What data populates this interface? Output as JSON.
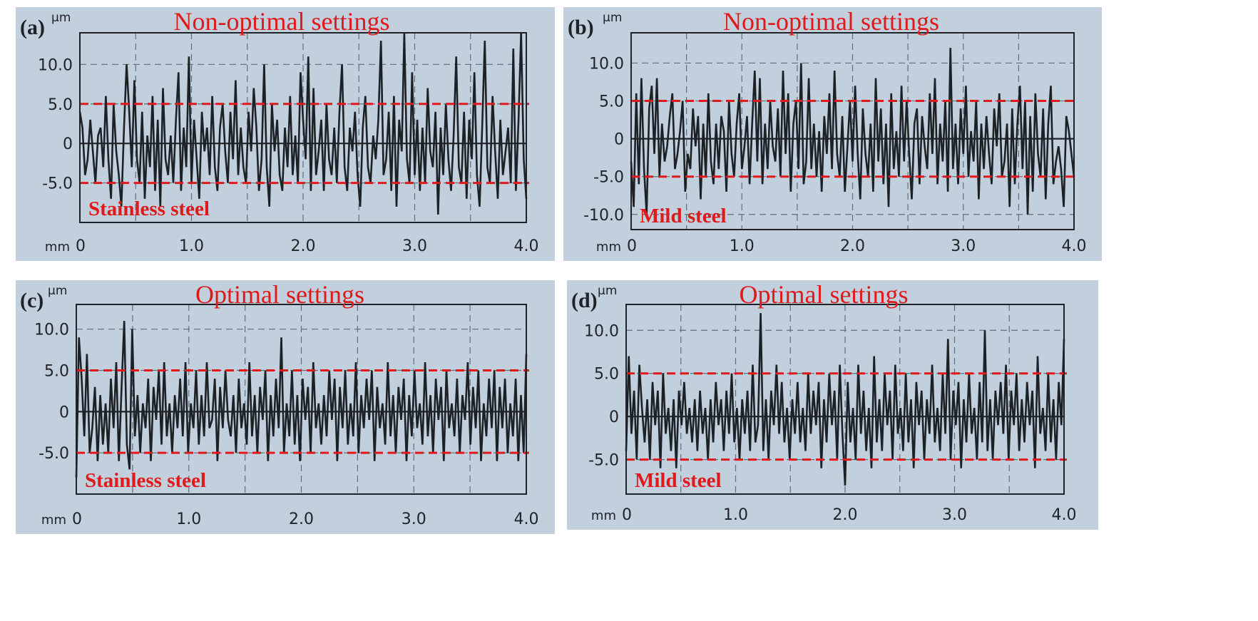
{
  "colors": {
    "background": "#c2cfdd",
    "frame": "#1f2328",
    "trace": "#1c2126",
    "grid": "#5f6f82",
    "threshold": "#e0191b",
    "annotation": "#e0191b"
  },
  "chart_data": [
    {
      "type": "line",
      "panel_label": "(a)",
      "title": "Non-optimal settings",
      "material": "Stainless steel",
      "xlabel": "mm",
      "ylabel": "µm",
      "xlim": [
        0,
        4.0
      ],
      "ylim": [
        -10,
        14
      ],
      "x_ticks": [
        "0",
        "1.0",
        "2.0",
        "3.0",
        "4.0"
      ],
      "y_ticks": [
        {
          "v": 10,
          "t": "10.0"
        },
        {
          "v": 5,
          "t": "5.0"
        },
        {
          "v": 0,
          "t": "0"
        },
        {
          "v": -5,
          "t": "-5.0"
        }
      ],
      "thresholds": [
        5.0,
        -5.0
      ],
      "grid": true,
      "series": [
        {
          "x_step": 0.02,
          "values": [
            4,
            2,
            -4,
            -2,
            3,
            -1,
            -5,
            1,
            2,
            -3,
            6,
            -2,
            -7,
            5,
            -1,
            -4,
            -8,
            2,
            10,
            4,
            -3,
            8,
            -2,
            -5,
            4,
            -7,
            1,
            -3,
            6,
            -6,
            3,
            -8,
            7,
            -2,
            -4,
            1,
            -5,
            3,
            9,
            -6,
            2,
            -3,
            11,
            -5,
            3,
            -2,
            -7,
            4,
            -1,
            2,
            -4,
            6,
            -3,
            -6,
            2,
            5,
            -1,
            -5,
            4,
            -2,
            8,
            -4,
            2,
            -3,
            -5,
            4,
            -1,
            7,
            2,
            -6,
            -2,
            10,
            -3,
            -8,
            5,
            -1,
            3,
            -4,
            -6,
            2,
            -3,
            6,
            -4,
            1,
            -5,
            9,
            3,
            -2,
            11,
            -6,
            7,
            -4,
            -1,
            3,
            -6,
            5,
            -2,
            -4,
            2,
            -5,
            4,
            10,
            -3,
            -6,
            2,
            -1,
            4,
            -4,
            -8,
            2,
            6,
            -3,
            -5,
            1,
            -2,
            3,
            13,
            -4,
            -2,
            4,
            -6,
            6,
            -8,
            3,
            -1,
            14,
            -2,
            -5,
            9,
            -4,
            3,
            -6,
            2,
            -5,
            7,
            -1,
            -3,
            4,
            -9,
            2,
            -4,
            5,
            -2,
            -6,
            1,
            11,
            -3,
            -5,
            4,
            -7,
            3,
            -2,
            9,
            -4,
            -8,
            2,
            13,
            -3,
            -5,
            6,
            -1,
            -7,
            3,
            -4,
            -1,
            2,
            -5,
            12,
            -6,
            3,
            14,
            -2,
            -7
          ]
        }
      ]
    },
    {
      "type": "line",
      "panel_label": "(b)",
      "title": "Non-optimal settings",
      "material": "Mild steel",
      "xlabel": "mm",
      "ylabel": "µm",
      "xlim": [
        0,
        4.0
      ],
      "ylim": [
        -12,
        14
      ],
      "x_ticks": [
        "0",
        "1.0",
        "2.0",
        "3.0",
        "4.0"
      ],
      "y_ticks": [
        {
          "v": 10,
          "t": "10.0"
        },
        {
          "v": 5,
          "t": "5.0"
        },
        {
          "v": 0,
          "t": "0"
        },
        {
          "v": -5,
          "t": "-5.0"
        },
        {
          "v": -10,
          "t": "-10.0"
        }
      ],
      "thresholds": [
        5.0,
        -5.0
      ],
      "grid": true,
      "series": [
        {
          "x_step": 0.02,
          "values": [
            -3,
            -9,
            6,
            -6,
            8,
            -4,
            -10,
            4,
            7,
            -2,
            8,
            -5,
            2,
            -3,
            -1,
            3,
            6,
            -4,
            -2,
            1,
            5,
            -7,
            -2,
            -4,
            4,
            -1,
            3,
            -8,
            2,
            -5,
            6,
            -3,
            -6,
            2,
            -4,
            3,
            1,
            -7,
            5,
            -2,
            -5,
            2,
            6,
            -4,
            -1,
            3,
            -6,
            2,
            9,
            -3,
            8,
            -6,
            2,
            -4,
            5,
            -1,
            -3,
            4,
            -5,
            9,
            -2,
            6,
            -7,
            2,
            5,
            -4,
            10,
            -6,
            -3,
            8,
            -4,
            2,
            -5,
            1,
            -7,
            3,
            -2,
            6,
            -4,
            9,
            -2,
            -5,
            3,
            -7,
            -1,
            5,
            -3,
            7,
            -2,
            -8,
            4,
            -2,
            -5,
            2,
            -7,
            8,
            -3,
            4,
            -6,
            2,
            -9,
            6,
            -4,
            1,
            -5,
            7,
            -3,
            5,
            -2,
            -8,
            2,
            4,
            -6,
            3,
            -1,
            -4,
            6,
            -2,
            8,
            -6,
            2,
            -3,
            5,
            -7,
            12,
            -4,
            2,
            -6,
            4,
            -2,
            7,
            -5,
            1,
            -3,
            5,
            -8,
            2,
            -4,
            3,
            -2,
            -6,
            4,
            -1,
            6,
            -5,
            -3,
            2,
            -9,
            4,
            -6,
            2,
            7,
            -4,
            5,
            -10,
            3,
            -7,
            6,
            -2,
            -5,
            4,
            -8,
            2,
            7,
            -6,
            -3,
            -1,
            -4,
            -9,
            3,
            1,
            -2,
            -5
          ]
        }
      ]
    },
    {
      "type": "line",
      "panel_label": "(c)",
      "title": "Optimal settings",
      "material": "Stainless steel",
      "xlabel": "mm",
      "ylabel": "µm",
      "xlim": [
        0,
        4.0
      ],
      "ylim": [
        -10,
        13
      ],
      "x_ticks": [
        "0",
        "1.0",
        "2.0",
        "3.0",
        "4.0"
      ],
      "y_ticks": [
        {
          "v": 10,
          "t": "10.0"
        },
        {
          "v": 5,
          "t": "5.0"
        },
        {
          "v": 0,
          "t": "0"
        },
        {
          "v": -5,
          "t": "-5.0"
        }
      ],
      "thresholds": [
        5.0,
        -5.0
      ],
      "grid": true,
      "series": [
        {
          "x_step": 0.02,
          "values": [
            -8,
            9,
            4,
            -3,
            7,
            -5,
            -2,
            3,
            -6,
            2,
            -4,
            1,
            -5,
            4,
            -2,
            6,
            -6,
            3,
            11,
            -4,
            -7,
            10,
            -3,
            2,
            -5,
            1,
            -2,
            4,
            -6,
            3,
            -1,
            5,
            -4,
            6,
            -3,
            1,
            -5,
            2,
            -2,
            4,
            -3,
            6,
            -5,
            1,
            -2,
            5,
            -4,
            2,
            -3,
            6,
            -2,
            -1,
            4,
            -6,
            3,
            -2,
            5,
            -1,
            -3,
            2,
            -5,
            4,
            -2,
            1,
            -4,
            6,
            -3,
            2,
            -5,
            3,
            -1,
            5,
            -6,
            2,
            -3,
            4,
            -2,
            9,
            -5,
            1,
            -3,
            5,
            -4,
            2,
            -6,
            4,
            -1,
            3,
            -5,
            6,
            -2,
            1,
            -4,
            2,
            -3,
            5,
            -1,
            4,
            -6,
            3,
            -2,
            5,
            -4,
            1,
            -3,
            6,
            -5,
            2,
            -2,
            4,
            -1,
            5,
            -6,
            3,
            -2,
            1,
            -4,
            6,
            -3,
            2,
            -5,
            3,
            -1,
            4,
            -6,
            2,
            -3,
            5,
            -2,
            1,
            -4,
            6,
            -3,
            2,
            -5,
            4,
            -1,
            3,
            -6,
            5,
            -2,
            1,
            -3,
            4,
            -5,
            2,
            -1,
            6,
            -4,
            3,
            -2,
            5,
            -6,
            1,
            -3,
            4,
            -2,
            5,
            -6,
            3,
            -2,
            4,
            -5,
            1,
            -3,
            4,
            -6,
            2,
            -5,
            7
          ]
        }
      ]
    },
    {
      "type": "line",
      "panel_label": "(d)",
      "title": "Optimal settings",
      "material": "Mild steel",
      "xlabel": "mm",
      "ylabel": "µm",
      "xlim": [
        0,
        4.0
      ],
      "ylim": [
        -9,
        13
      ],
      "x_ticks": [
        "0",
        "1.0",
        "2.0",
        "3.0",
        "4.0"
      ],
      "y_ticks": [
        {
          "v": 10,
          "t": "10.0"
        },
        {
          "v": 5,
          "t": "5.0"
        },
        {
          "v": 0,
          "t": "0"
        },
        {
          "v": -5,
          "t": "-5.0"
        }
      ],
      "thresholds": [
        5.0,
        -5.0
      ],
      "grid": true,
      "series": [
        {
          "x_step": 0.02,
          "values": [
            -4,
            7,
            -2,
            3,
            -5,
            6,
            1,
            -3,
            2,
            -5,
            4,
            -1,
            3,
            -6,
            5,
            -2,
            1,
            -4,
            2,
            -6,
            3,
            -1,
            4,
            -2,
            1,
            -3,
            2,
            -4,
            3,
            -2,
            1,
            -5,
            2,
            -3,
            4,
            -1,
            2,
            -4,
            3,
            -2,
            5,
            -3,
            1,
            -5,
            2,
            -2,
            3,
            -4,
            6,
            -3,
            -1,
            12,
            -4,
            2,
            -5,
            3,
            -1,
            6,
            -2,
            4,
            -3,
            1,
            -5,
            2,
            -2,
            4,
            -3,
            1,
            -4,
            5,
            -2,
            3,
            -1,
            4,
            -6,
            2,
            -3,
            5,
            -1,
            3,
            -5,
            6,
            -2,
            -8,
            4,
            -3,
            1,
            -5,
            6,
            -2,
            3,
            -4,
            1,
            -6,
            7,
            -3,
            2,
            -4,
            5,
            -1,
            3,
            -5,
            6,
            -2,
            1,
            -4,
            5,
            -3,
            2,
            -6,
            4,
            -1,
            3,
            -5,
            2,
            -2,
            6,
            -3,
            1,
            -4,
            5,
            -2,
            9,
            -5,
            3,
            -1,
            4,
            -6,
            2,
            -3,
            5,
            -2,
            1,
            -5,
            4,
            -3,
            10,
            -4,
            2,
            -5,
            3,
            -1,
            4,
            -2,
            6,
            -5,
            3,
            -1,
            5,
            -4,
            2,
            -3,
            4,
            -1,
            3,
            -6,
            7,
            -2,
            1,
            -4,
            5,
            -3,
            2,
            -5,
            4,
            -1,
            9
          ]
        }
      ]
    }
  ]
}
